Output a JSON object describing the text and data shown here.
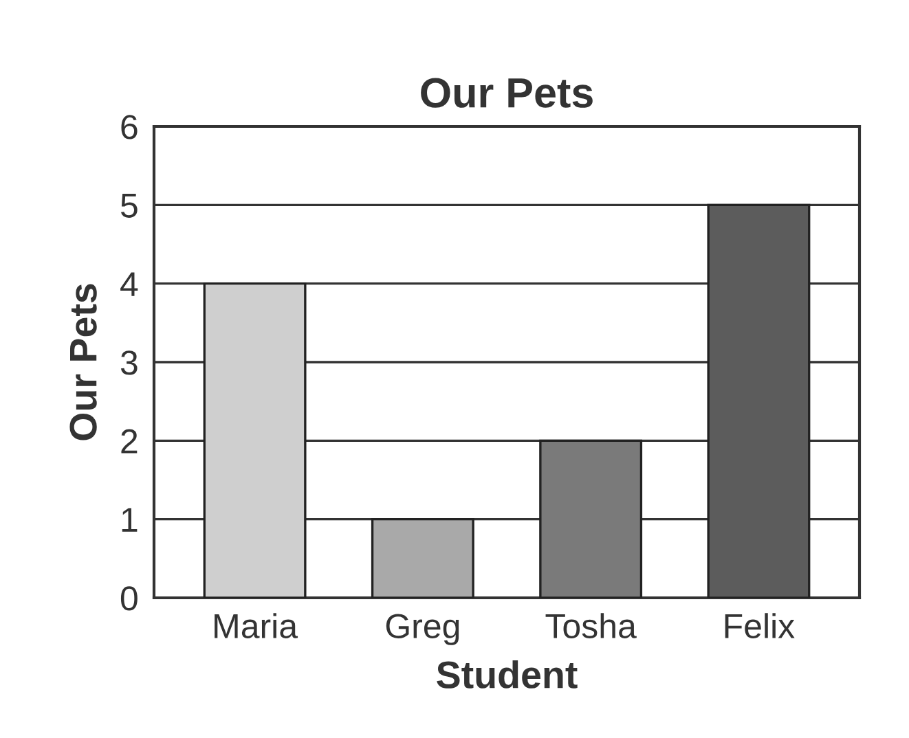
{
  "chart_data": {
    "type": "bar",
    "title": "Our Pets",
    "xlabel": "Student",
    "ylabel": "Our Pets",
    "categories": [
      "Maria",
      "Greg",
      "Tosha",
      "Felix"
    ],
    "values": [
      4,
      1,
      2,
      5
    ],
    "colors": [
      "#cfcfcf",
      "#a9a9a9",
      "#7a7a7a",
      "#5c5c5c"
    ],
    "ylim": [
      0,
      6
    ],
    "yticks": [
      0,
      1,
      2,
      3,
      4,
      5,
      6
    ],
    "grid": "y"
  }
}
